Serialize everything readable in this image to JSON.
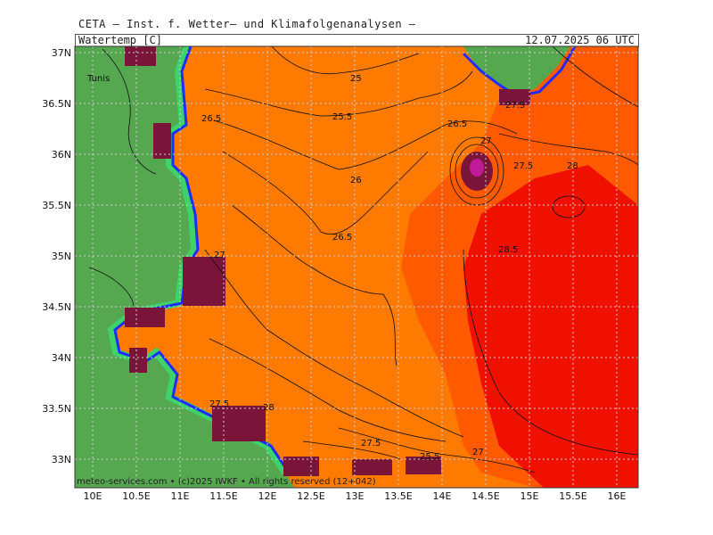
{
  "header": {
    "title": "CETA – Inst. f. Wetter– und Klimafolgenanalysen –",
    "variable": "Watertemp [C]",
    "datetime": "12.07.2025  06 UTC"
  },
  "footer": {
    "credit": "meteo-services.com • (c)2025 IWKF • All rights reserved (12+042)"
  },
  "map": {
    "place_label": "Tunis",
    "lon_range": [
      9.8,
      16.3
    ],
    "lat_range": [
      32.7,
      37.05
    ],
    "x_ticks": [
      "10E",
      "10.5E",
      "11E",
      "11.5E",
      "12E",
      "12.5E",
      "13E",
      "13.5E",
      "14E",
      "14.5E",
      "15E",
      "15.5E",
      "16E"
    ],
    "y_ticks": [
      "37N",
      "36.5N",
      "36N",
      "35.5N",
      "35N",
      "34.5N",
      "34N",
      "33.5N",
      "33N"
    ],
    "contour_labels": [
      "25",
      "25.5",
      "26",
      "26.5",
      "26.5",
      "26.5",
      "27",
      "27",
      "27",
      "27.5",
      "27.5",
      "27.5",
      "27.5",
      "28",
      "28",
      "28.5",
      "25.5"
    ],
    "colors": {
      "land": "#55a84f",
      "land_edge": "#3ed26a",
      "coast_blue": "#1f2cff",
      "sst_26_5": "#ff7a00",
      "sst_27_5": "#ff5a00",
      "sst_28_5": "#f01000",
      "hot_spot": "#7a1438"
    }
  }
}
